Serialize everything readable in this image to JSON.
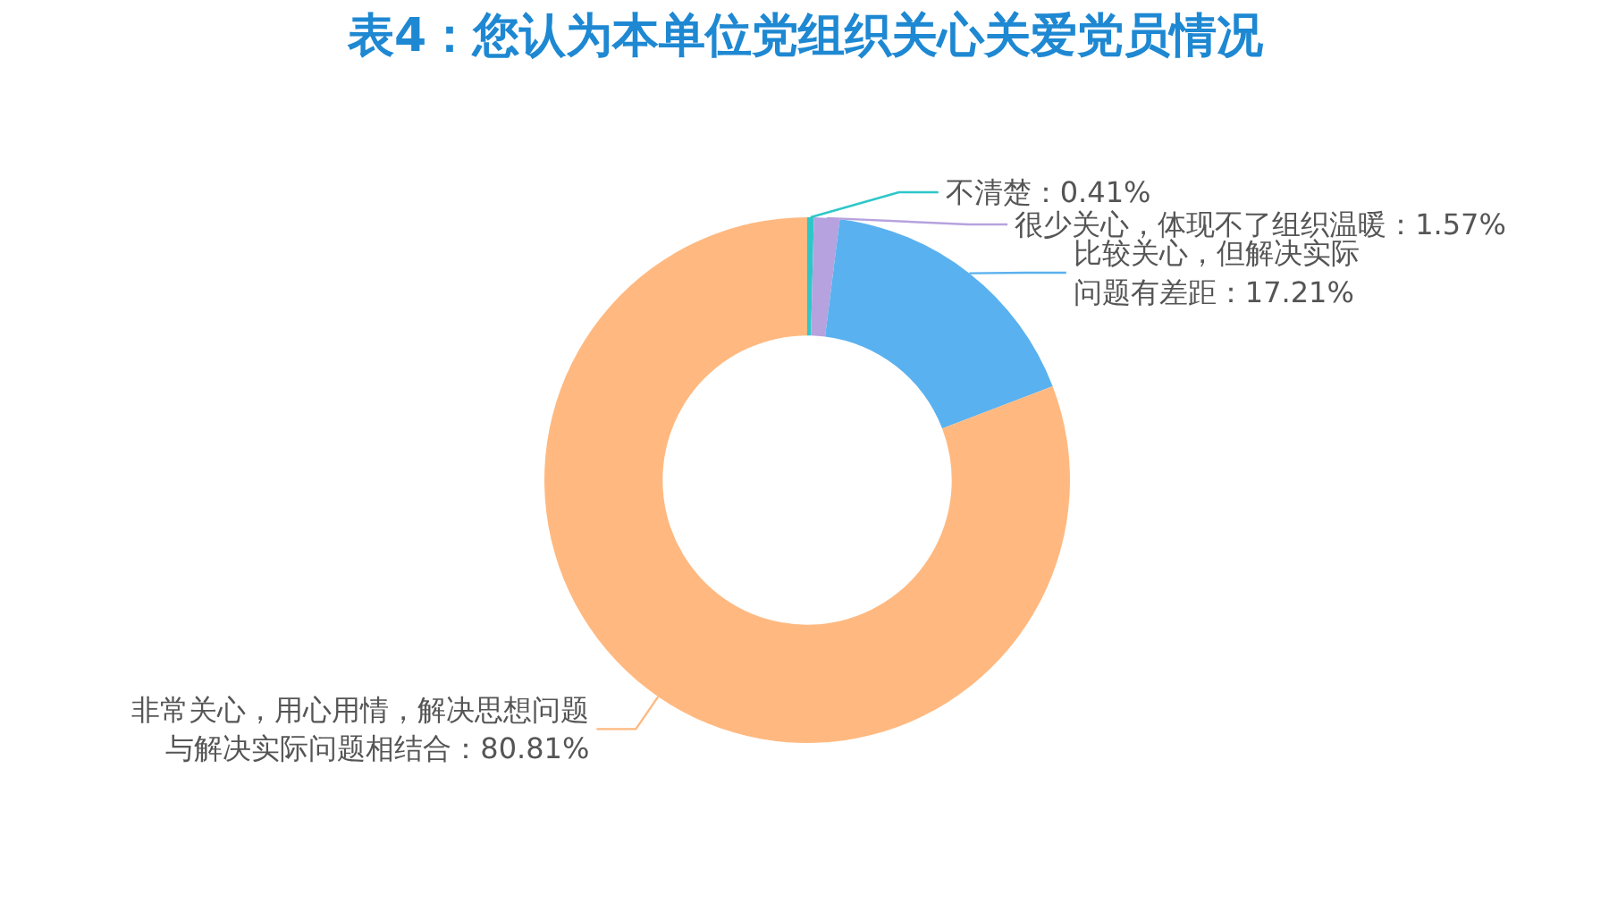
{
  "chart_data": {
    "type": "donut",
    "title": "表4：您认为本单位党组织关心关爱党员情况",
    "categories": [
      "不清楚",
      "很少关心，体现不了组织温暖",
      "比较关心，但解决实际问题有差距",
      "非常关心，用心用情，解决思想问题与解决实际问题相结合"
    ],
    "values": [
      0.41,
      1.57,
      17.21,
      80.81
    ],
    "value_labels": [
      "0.41%",
      "1.57%",
      "17.21%",
      "80.81%"
    ],
    "colors": [
      "#2ec7c9",
      "#b6a2de",
      "#5ab1ef",
      "#ffb980"
    ]
  }
}
